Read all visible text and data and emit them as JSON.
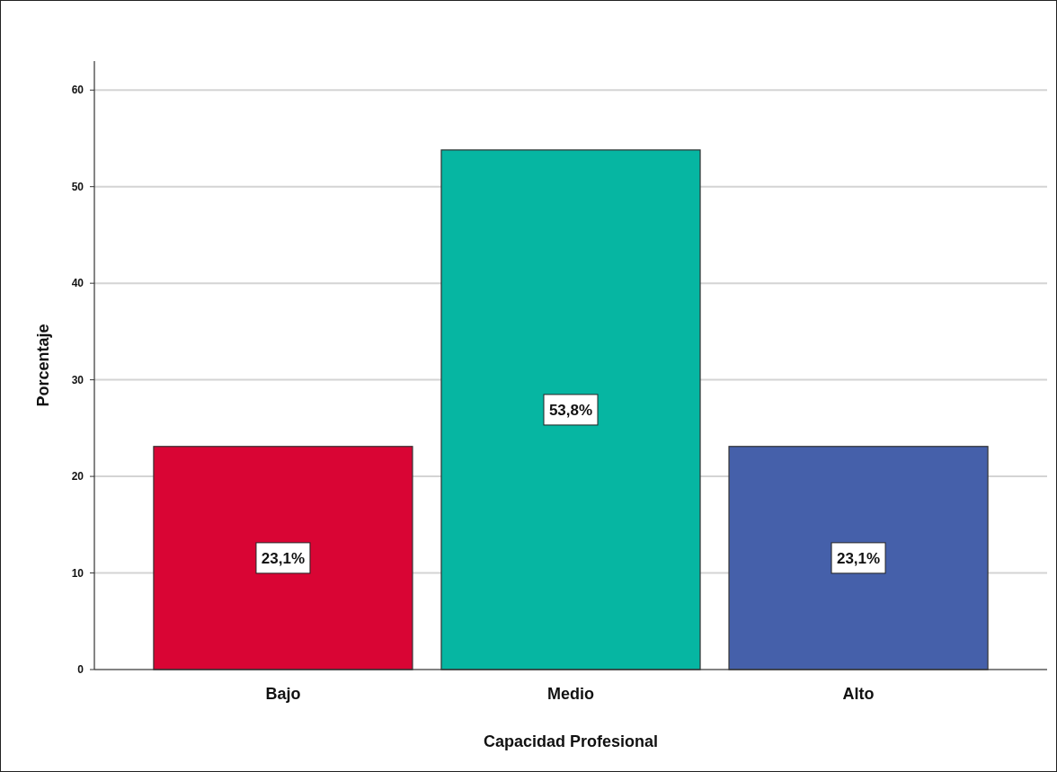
{
  "chart_data": {
    "type": "bar",
    "xlabel": "Capacidad Profesional",
    "ylabel": "Porcentaje",
    "categories": [
      "Bajo",
      "Medio",
      "Alto"
    ],
    "values": [
      23.1,
      53.8,
      23.1
    ],
    "colors": [
      "#d90534",
      "#06b6a2",
      "#4560aa"
    ],
    "value_labels": [
      "23,1%",
      "53,8%",
      "23,1%"
    ],
    "ylim": [
      0,
      63
    ],
    "yticks": [
      0,
      10,
      20,
      30,
      40,
      50,
      60
    ],
    "grid": "y"
  }
}
